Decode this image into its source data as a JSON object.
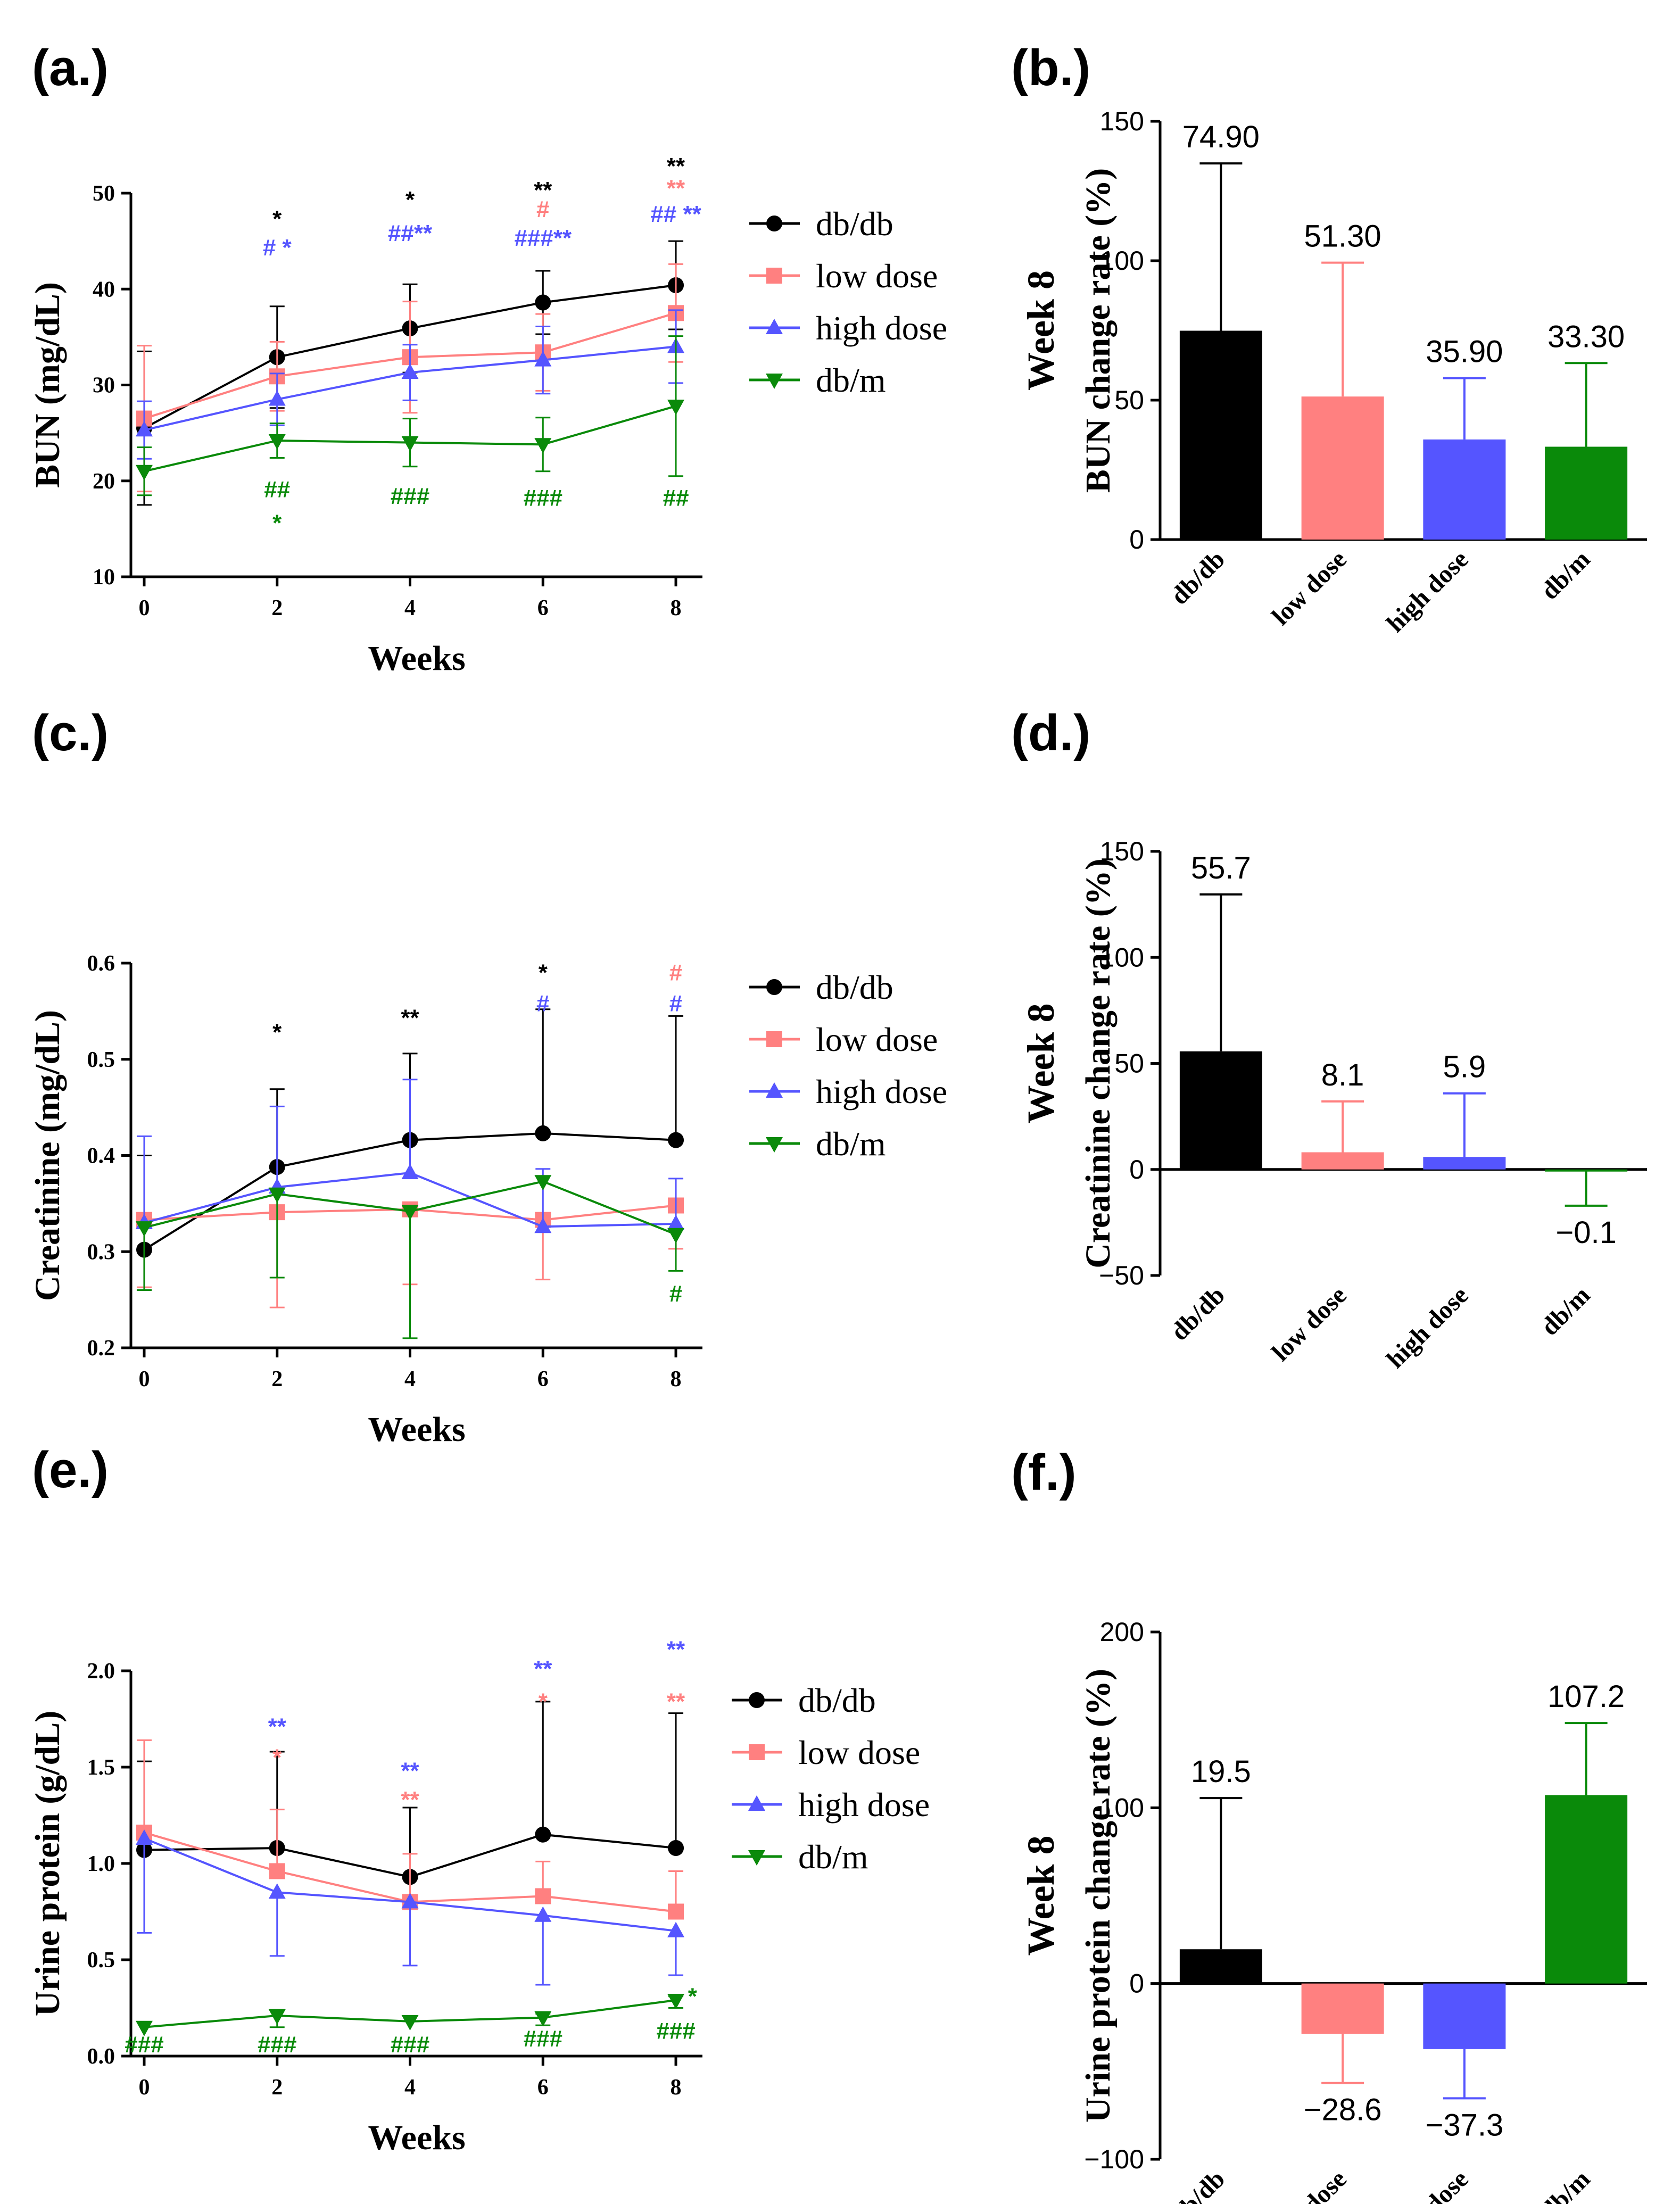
{
  "chart_data": [
    {
      "type": "line",
      "panel": "(a.)",
      "xlabel": "Weeks",
      "ylabel": "BUN (mg/dL)",
      "x": [
        0,
        2,
        4,
        6,
        8
      ],
      "xticks": [
        "0",
        "2",
        "4",
        "6",
        "8"
      ],
      "ylim": [
        10,
        50
      ],
      "yticks": [
        "10",
        "20",
        "30",
        "40",
        "50"
      ],
      "legend_position": "right",
      "series": [
        {
          "name": "db/db",
          "color": "#000000",
          "marker": "circle",
          "values": [
            25.5,
            32.9,
            35.9,
            38.6,
            40.4
          ],
          "err_up": [
            8.0,
            5.3,
            4.6,
            3.3,
            4.6
          ],
          "err_down": [
            8.0,
            5.3,
            4.6,
            3.3,
            4.6
          ]
        },
        {
          "name": "low dose",
          "color": "#ff8080",
          "marker": "square",
          "values": [
            26.5,
            30.9,
            32.9,
            33.4,
            37.5
          ],
          "err_up": [
            7.6,
            3.6,
            5.8,
            4.0,
            5.1
          ],
          "err_down": [
            7.6,
            3.6,
            5.8,
            4.0,
            5.1
          ]
        },
        {
          "name": "high dose",
          "color": "#5555ff",
          "marker": "triangle",
          "values": [
            25.3,
            28.5,
            31.3,
            32.6,
            34.0
          ],
          "err_up": [
            3.0,
            2.7,
            2.9,
            3.5,
            3.8
          ],
          "err_down": [
            3.0,
            2.7,
            2.9,
            3.5,
            3.8
          ]
        },
        {
          "name": "db/m",
          "color": "#0a8a0a",
          "marker": "triangle-down",
          "values": [
            21.0,
            24.2,
            24.0,
            23.8,
            27.8
          ],
          "err_up": [
            2.5,
            1.8,
            2.5,
            2.8,
            7.3
          ],
          "err_down": [
            2.5,
            1.8,
            2.5,
            2.8,
            7.3
          ]
        }
      ],
      "annotations": [
        {
          "x": 2,
          "y": 46.5,
          "text": "*",
          "color": "#000000"
        },
        {
          "x": 2,
          "y": 43.5,
          "text": "# *",
          "color": "#5555ff"
        },
        {
          "x": 2,
          "y": 18.3,
          "text": "##",
          "color": "#0a8a0a"
        },
        {
          "x": 2,
          "y": 14.8,
          "text": "*",
          "color": "#0a8a0a"
        },
        {
          "x": 4,
          "y": 48.5,
          "text": "*",
          "color": "#000000"
        },
        {
          "x": 4,
          "y": 45.0,
          "text": "##**",
          "color": "#5555ff"
        },
        {
          "x": 4,
          "y": 17.6,
          "text": "###",
          "color": "#0a8a0a"
        },
        {
          "x": 6,
          "y": 49.5,
          "text": "**",
          "color": "#000000"
        },
        {
          "x": 6,
          "y": 47.5,
          "text": "#",
          "color": "#ff8080"
        },
        {
          "x": 6,
          "y": 44.5,
          "text": "###**",
          "color": "#5555ff"
        },
        {
          "x": 6,
          "y": 17.4,
          "text": "###",
          "color": "#0a8a0a"
        },
        {
          "x": 8,
          "y": 52.0,
          "text": "**",
          "color": "#000000"
        },
        {
          "x": 8,
          "y": 49.7,
          "text": "**",
          "color": "#ff8080"
        },
        {
          "x": 8,
          "y": 47.0,
          "text": "## **",
          "color": "#5555ff"
        },
        {
          "x": 8,
          "y": 17.4,
          "text": "##",
          "color": "#0a8a0a"
        }
      ]
    },
    {
      "type": "bar",
      "panel": "(b.)",
      "categories": [
        "db/db",
        "low dose",
        "high dose",
        "db/m"
      ],
      "values": [
        74.9,
        51.3,
        35.9,
        33.3
      ],
      "labels": [
        "74.90",
        "51.30",
        "35.90",
        "33.30"
      ],
      "err": [
        60,
        48,
        22,
        30
      ],
      "colors": [
        "#000000",
        "#ff8080",
        "#5555ff",
        "#0a8a0a"
      ],
      "title": "Week 8",
      "ylabel": "BUN change rate (%)",
      "ylim": [
        0,
        150
      ],
      "yticks": [
        "0",
        "50",
        "100",
        "150"
      ]
    },
    {
      "type": "line",
      "panel": "(c.)",
      "xlabel": "Weeks",
      "ylabel": "Creatinine (mg/dL)",
      "x": [
        0,
        2,
        4,
        6,
        8
      ],
      "xticks": [
        "0",
        "2",
        "4",
        "6",
        "8"
      ],
      "ylim": [
        0.2,
        0.6
      ],
      "yticks": [
        "0.2",
        "0.3",
        "0.4",
        "0.5",
        "0.6"
      ],
      "legend_position": "right",
      "series": [
        {
          "name": "db/db",
          "color": "#000000",
          "marker": "circle",
          "values": [
            0.302,
            0.388,
            0.416,
            0.423,
            0.416
          ],
          "err_up": [
            0.098,
            0.081,
            0.09,
            0.129,
            0.129
          ],
          "err_down": [
            0.042,
            0.0,
            0.0,
            0.0,
            0.0
          ]
        },
        {
          "name": "low dose",
          "color": "#ff8080",
          "marker": "square",
          "values": [
            0.333,
            0.341,
            0.344,
            0.333,
            0.348
          ],
          "err_up": [
            0.0,
            0.0,
            0.0,
            0.0,
            0.0
          ],
          "err_down": [
            0.07,
            0.099,
            0.078,
            0.062,
            0.045
          ]
        },
        {
          "name": "high dose",
          "color": "#5555ff",
          "marker": "triangle",
          "values": [
            0.33,
            0.367,
            0.382,
            0.326,
            0.329
          ],
          "err_up": [
            0.09,
            0.084,
            0.097,
            0.06,
            0.047
          ],
          "err_down": [
            0.0,
            0.0,
            0.0,
            0.0,
            0.0
          ]
        },
        {
          "name": "db/m",
          "color": "#0a8a0a",
          "marker": "triangle-down",
          "values": [
            0.325,
            0.36,
            0.342,
            0.373,
            0.318
          ],
          "err_up": [
            0.0,
            0.0,
            0.0,
            0.0,
            0.0
          ],
          "err_down": [
            0.065,
            0.087,
            0.132,
            0.0,
            0.038
          ]
        }
      ],
      "annotations": [
        {
          "x": 2,
          "y": 0.52,
          "text": "*",
          "color": "#000000"
        },
        {
          "x": 4,
          "y": 0.535,
          "text": "**",
          "color": "#000000"
        },
        {
          "x": 6,
          "y": 0.582,
          "text": "*",
          "color": "#000000"
        },
        {
          "x": 6,
          "y": 0.55,
          "text": "#",
          "color": "#5555ff"
        },
        {
          "x": 8,
          "y": 0.582,
          "text": "#",
          "color": "#ff8080"
        },
        {
          "x": 8,
          "y": 0.55,
          "text": "#",
          "color": "#5555ff"
        },
        {
          "x": 8,
          "y": 0.248,
          "text": "#",
          "color": "#0a8a0a"
        }
      ]
    },
    {
      "type": "bar",
      "panel": "(d.)",
      "categories": [
        "db/db",
        "low dose",
        "high dose",
        "db/m"
      ],
      "values": [
        55.7,
        8.1,
        5.9,
        -0.1
      ],
      "labels": [
        "55.7",
        "8.1",
        "5.9",
        "−0.1"
      ],
      "err": [
        74,
        24,
        30,
        17
      ],
      "colors": [
        "#000000",
        "#ff8080",
        "#5555ff",
        "#0a8a0a"
      ],
      "title": "Week 8",
      "ylabel": "Creatinine change rate (%)",
      "ylim": [
        -50,
        150
      ],
      "yticks": [
        "−50",
        "0",
        "50",
        "100",
        "150"
      ]
    },
    {
      "type": "line",
      "panel": "(e.)",
      "xlabel": "Weeks",
      "ylabel": "Urine protein (g/dL)",
      "x": [
        0,
        2,
        4,
        6,
        8
      ],
      "xticks": [
        "0",
        "2",
        "4",
        "6",
        "8"
      ],
      "ylim": [
        0.0,
        2.0
      ],
      "yticks": [
        "0.0",
        "0.5",
        "1.0",
        "1.5",
        "2.0"
      ],
      "legend_position": "right",
      "series": [
        {
          "name": "db/db",
          "color": "#000000",
          "marker": "circle",
          "values": [
            1.07,
            1.08,
            0.93,
            1.15,
            1.08
          ],
          "err_up": [
            0.46,
            0.5,
            0.36,
            0.69,
            0.7
          ],
          "err_down": [
            0.0,
            0.0,
            0.0,
            0.0,
            0.0
          ]
        },
        {
          "name": "low dose",
          "color": "#ff8080",
          "marker": "square",
          "values": [
            1.16,
            0.96,
            0.8,
            0.83,
            0.75
          ],
          "err_up": [
            0.48,
            0.32,
            0.25,
            0.18,
            0.21
          ],
          "err_down": [
            0.0,
            0.0,
            0.0,
            0.0,
            0.0
          ]
        },
        {
          "name": "high dose",
          "color": "#5555ff",
          "marker": "triangle",
          "values": [
            1.13,
            0.85,
            0.8,
            0.73,
            0.65
          ],
          "err_up": [
            0.0,
            0.0,
            0.0,
            0.0,
            0.0
          ],
          "err_down": [
            0.49,
            0.33,
            0.33,
            0.36,
            0.23
          ]
        },
        {
          "name": "db/m",
          "color": "#0a8a0a",
          "marker": "triangle-down",
          "values": [
            0.15,
            0.21,
            0.18,
            0.2,
            0.29
          ],
          "err_up": [
            0.0,
            0.03,
            0.0,
            0.02,
            0.02
          ],
          "err_down": [
            0.0,
            0.06,
            0.0,
            0.04,
            0.04
          ]
        }
      ],
      "annotations": [
        {
          "x": 0,
          "y": 0.02,
          "text": "###",
          "color": "#0a8a0a"
        },
        {
          "x": 2,
          "y": 1.67,
          "text": "**",
          "color": "#5555ff"
        },
        {
          "x": 2,
          "y": 1.51,
          "text": "*",
          "color": "#ff8080"
        },
        {
          "x": 2,
          "y": 0.02,
          "text": "###",
          "color": "#0a8a0a"
        },
        {
          "x": 4,
          "y": 1.44,
          "text": "**",
          "color": "#5555ff"
        },
        {
          "x": 4,
          "y": 1.29,
          "text": "**",
          "color": "#ff8080"
        },
        {
          "x": 4,
          "y": 0.02,
          "text": "###",
          "color": "#0a8a0a"
        },
        {
          "x": 6,
          "y": 1.97,
          "text": "**",
          "color": "#5555ff"
        },
        {
          "x": 6,
          "y": 1.8,
          "text": "*",
          "color": "#ff8080"
        },
        {
          "x": 6,
          "y": 0.05,
          "text": "###",
          "color": "#0a8a0a"
        },
        {
          "x": 8,
          "y": 2.07,
          "text": "**",
          "color": "#5555ff"
        },
        {
          "x": 8,
          "y": 1.8,
          "text": "**",
          "color": "#ff8080"
        },
        {
          "x": 8,
          "y": 0.09,
          "text": "###",
          "color": "#0a8a0a"
        },
        {
          "x": 8.25,
          "y": 0.27,
          "text": "*",
          "color": "#0a8a0a"
        }
      ]
    },
    {
      "type": "bar",
      "panel": "(f.)",
      "categories": [
        "db/db",
        "low dose",
        "high dose",
        "db/m"
      ],
      "values": [
        19.5,
        -28.6,
        -37.3,
        107.2
      ],
      "labels": [
        "19.5",
        "−28.6",
        "−37.3",
        "107.2"
      ],
      "err": [
        86,
        28,
        28,
        41
      ],
      "colors": [
        "#000000",
        "#ff8080",
        "#5555ff",
        "#0a8a0a"
      ],
      "title": "Week 8",
      "ylabel": "Urine protein change rate (%)",
      "ylim": [
        -100,
        200
      ],
      "yticks": [
        "−100",
        "0",
        "100",
        "200"
      ]
    }
  ]
}
